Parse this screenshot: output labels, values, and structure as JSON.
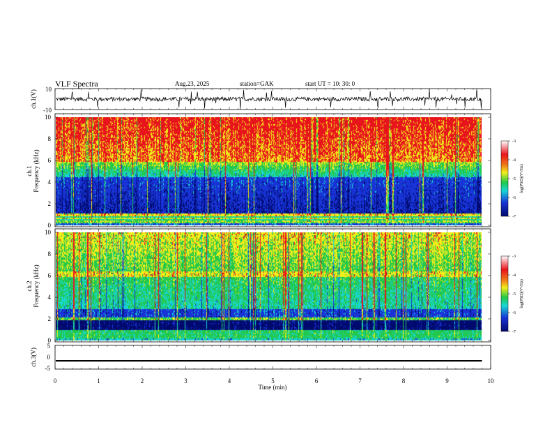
{
  "header": {
    "title": "VLF  Spectra",
    "date": "Aug.23, 2025",
    "station": "station=GAK",
    "start_ut": "start  UT  =   10: 30: 0"
  },
  "chart_data": [
    {
      "type": "line",
      "name": "ch1-waveform",
      "ylabel": "ch.1(V)",
      "ylim": [
        -10,
        10
      ],
      "ytick_labels": [
        "10",
        "-10"
      ],
      "baseline": 0
    },
    {
      "type": "heatmap",
      "name": "ch1-spectrogram",
      "ylabel_line1": "ch.1",
      "ylabel_line2": "Frequency  (kHz)",
      "ylim": [
        0,
        10
      ],
      "ytick_labels": [
        "0",
        "2",
        "4",
        "6",
        "8",
        "10"
      ],
      "colorbar": {
        "range": [
          -7,
          -3
        ],
        "tick_labels": [
          "-3",
          "-4",
          "-5",
          "-6",
          "-7"
        ],
        "label": "log(PSD)(V²/Hz)"
      }
    },
    {
      "type": "heatmap",
      "name": "ch2-spectrogram",
      "ylabel_line1": "ch.2",
      "ylabel_line2": "Frequency  (kHz)",
      "ylim": [
        0,
        10
      ],
      "ytick_labels": [
        "0",
        "2",
        "4",
        "6",
        "8",
        "10"
      ],
      "colorbar": {
        "range": [
          -7,
          -3
        ],
        "tick_labels": [
          "-3",
          "-4",
          "-5",
          "-6",
          "-7"
        ],
        "label": "log(PSD)(V²/Hz)"
      }
    },
    {
      "type": "line",
      "name": "ch3-waveform",
      "ylabel": "ch.3(V)",
      "ylim": [
        -5,
        5
      ],
      "ytick_labels": [
        "5",
        "0",
        "-5"
      ],
      "baseline": -1.5
    }
  ],
  "xaxis": {
    "label": "Time  (min)",
    "range": [
      0,
      10
    ],
    "tick_labels": [
      "0",
      "1",
      "2",
      "3",
      "4",
      "5",
      "6",
      "7",
      "8",
      "9",
      "10"
    ]
  },
  "colors": {
    "red": "#e8141c",
    "yellow": "#f2ee1a",
    "green": "#22c84a",
    "cyan": "#19d6d6",
    "blue": "#1834d6",
    "navy": "#000a6e"
  }
}
